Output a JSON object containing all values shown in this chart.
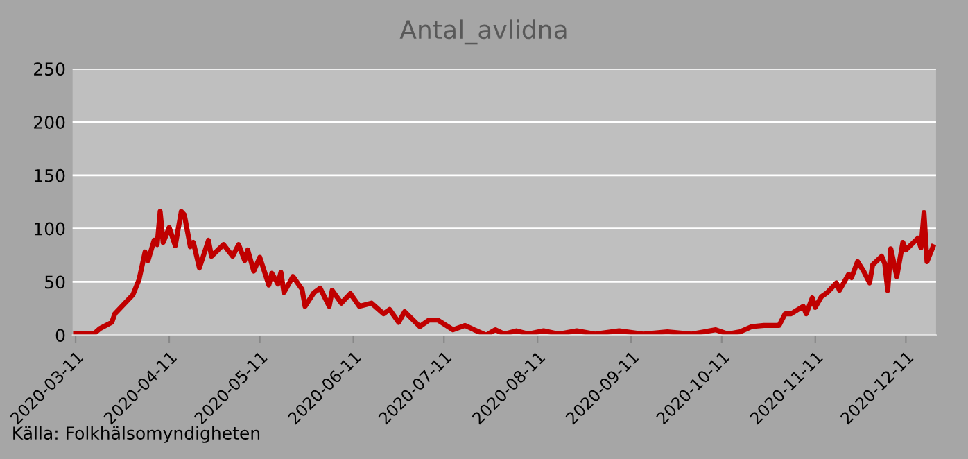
{
  "chart_data": {
    "type": "line",
    "title": "Antal_avlidna",
    "annotations": [
      "Källa: Folkhälsomyndigheten"
    ],
    "x": [
      "2020-03-11",
      "2020-03-17",
      "2020-03-19",
      "2020-03-23",
      "2020-03-24",
      "2020-03-27",
      "2020-03-30",
      "2020-04-01",
      "2020-04-03",
      "2020-04-04",
      "2020-04-06",
      "2020-04-07",
      "2020-04-08",
      "2020-04-09",
      "2020-04-11",
      "2020-04-13",
      "2020-04-15",
      "2020-04-16",
      "2020-04-18",
      "2020-04-19",
      "2020-04-21",
      "2020-04-24",
      "2020-04-25",
      "2020-04-29",
      "2020-05-02",
      "2020-05-04",
      "2020-05-06",
      "2020-05-07",
      "2020-05-09",
      "2020-05-11",
      "2020-05-14",
      "2020-05-15",
      "2020-05-17",
      "2020-05-18",
      "2020-05-19",
      "2020-05-22",
      "2020-05-25",
      "2020-05-26",
      "2020-05-29",
      "2020-05-31",
      "2020-06-03",
      "2020-06-04",
      "2020-06-07",
      "2020-06-10",
      "2020-06-13",
      "2020-06-17",
      "2020-06-21",
      "2020-06-23",
      "2020-06-26",
      "2020-06-28",
      "2020-07-03",
      "2020-07-06",
      "2020-07-09",
      "2020-07-14",
      "2020-07-18",
      "2020-07-21",
      "2020-07-25",
      "2020-07-28",
      "2020-07-31",
      "2020-08-04",
      "2020-08-08",
      "2020-08-13",
      "2020-08-18",
      "2020-08-24",
      "2020-08-30",
      "2020-09-07",
      "2020-09-15",
      "2020-09-23",
      "2020-10-01",
      "2020-10-09",
      "2020-10-13",
      "2020-10-17",
      "2020-10-21",
      "2020-10-25",
      "2020-10-30",
      "2020-11-01",
      "2020-11-03",
      "2020-11-07",
      "2020-11-08",
      "2020-11-10",
      "2020-11-11",
      "2020-11-13",
      "2020-11-15",
      "2020-11-18",
      "2020-11-19",
      "2020-11-22",
      "2020-11-23",
      "2020-11-25",
      "2020-11-27",
      "2020-11-29",
      "2020-11-30",
      "2020-12-03",
      "2020-12-04",
      "2020-12-05",
      "2020-12-06",
      "2020-12-08",
      "2020-12-10",
      "2020-12-11",
      "2020-12-15",
      "2020-12-16",
      "2020-12-17",
      "2020-12-18",
      "2020-12-20"
    ],
    "series": [
      {
        "color": "#c00000",
        "values": [
          1,
          1,
          6,
          12,
          20,
          29,
          38,
          52,
          78,
          70,
          89,
          85,
          116,
          87,
          101,
          84,
          116,
          113,
          83,
          87,
          63,
          89,
          74,
          85,
          74,
          85,
          70,
          80,
          60,
          73,
          47,
          58,
          48,
          59,
          40,
          55,
          43,
          27,
          40,
          44,
          27,
          42,
          30,
          39,
          27,
          30,
          20,
          24,
          12,
          22,
          8,
          14,
          14,
          5,
          9,
          5,
          0,
          5,
          1,
          4,
          1,
          4,
          1,
          4,
          1,
          4,
          1,
          3,
          1,
          5,
          1,
          3,
          8,
          9,
          9,
          20,
          20,
          27,
          20,
          35,
          26,
          36,
          40,
          49,
          42,
          57,
          54,
          69,
          60,
          49,
          66,
          74,
          67,
          42,
          81,
          55,
          87,
          80,
          91,
          82,
          115,
          69,
          83
        ]
      }
    ],
    "xlim": [
      "2020-03-10",
      "2020-12-21"
    ],
    "xticks": [
      "2020-03-11",
      "2020-04-11",
      "2020-05-11",
      "2020-06-11",
      "2020-07-11",
      "2020-08-11",
      "2020-09-11",
      "2020-10-11",
      "2020-11-11",
      "2020-12-11"
    ],
    "ylim": [
      0,
      250
    ],
    "yticks": [
      0,
      50,
      100,
      150,
      200,
      250
    ],
    "grid": "y",
    "marker": "none",
    "line_style": "solid"
  }
}
